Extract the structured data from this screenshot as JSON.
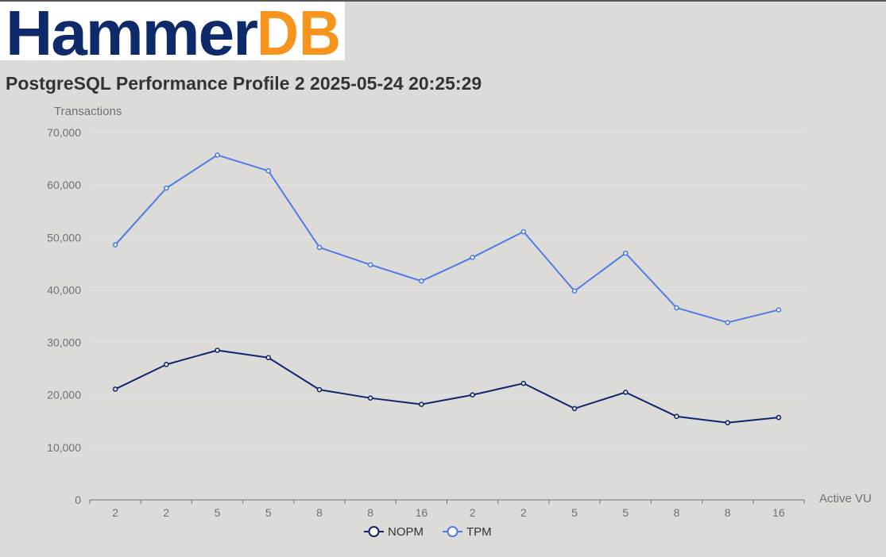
{
  "logo": {
    "text_part1": "Hammer",
    "text_part2": "DB",
    "color_part1": "#0e2a6b",
    "color_part2": "#f7941d"
  },
  "header": {
    "title": "PostgreSQL Performance Profile 2 2025-05-24 20:25:29"
  },
  "chart_data": {
    "type": "line",
    "title": "PostgreSQL Performance Profile 2 2025-05-24 20:25:29",
    "xlabel": "Active VU",
    "ylabel": "Transactions",
    "categories": [
      "2",
      "2",
      "5",
      "5",
      "8",
      "8",
      "16",
      "2",
      "2",
      "5",
      "5",
      "8",
      "8",
      "16"
    ],
    "ylim": [
      0,
      70000
    ],
    "yticks": [
      0,
      10000,
      20000,
      30000,
      40000,
      50000,
      60000,
      70000
    ],
    "ytick_labels": [
      "0",
      "10,000",
      "20,000",
      "30,000",
      "40,000",
      "50,000",
      "60,000",
      "70,000"
    ],
    "grid": true,
    "legend_position": "bottom-center",
    "series": [
      {
        "name": "NOPM",
        "color": "#0d2670",
        "values": [
          21100,
          25800,
          28500,
          27100,
          21000,
          19400,
          18200,
          20000,
          22200,
          17400,
          20500,
          15900,
          14700,
          15700
        ]
      },
      {
        "name": "TPM",
        "color": "#4d7ce8",
        "values": [
          48600,
          59400,
          65700,
          62700,
          48100,
          44800,
          41700,
          46200,
          51100,
          39800,
          47000,
          36600,
          33800,
          36200
        ]
      }
    ]
  }
}
